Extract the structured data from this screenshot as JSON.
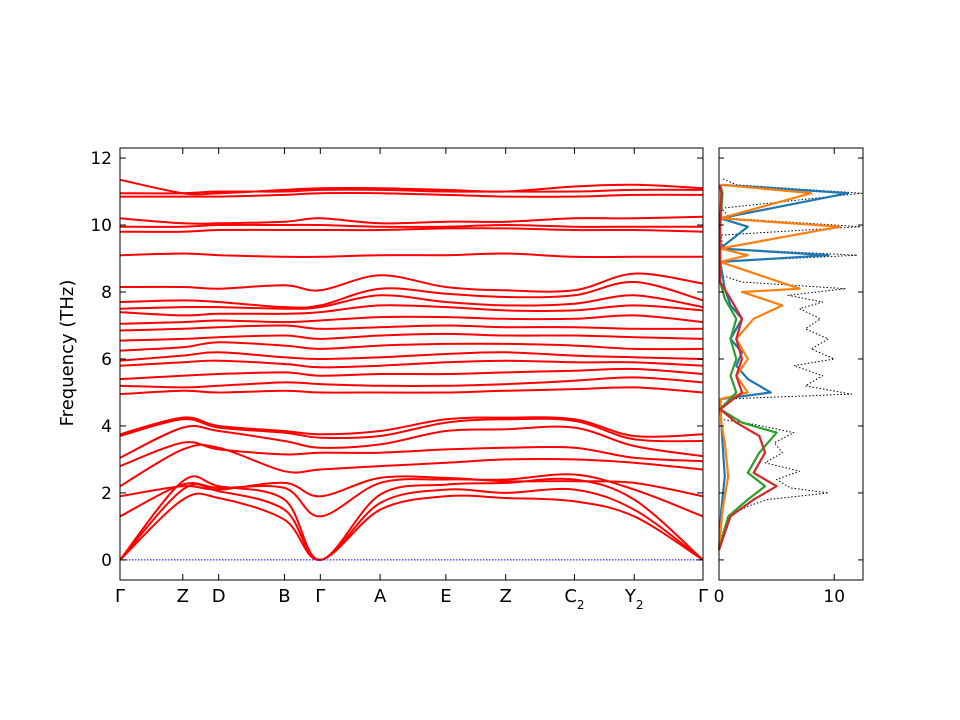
{
  "colors": {
    "bands": "#ff0000",
    "zero_line": "#0000ff",
    "total_dos": "#000000",
    "pdos": [
      "#1f77b4",
      "#ff7f0e",
      "#2ca02c",
      "#d62728"
    ]
  },
  "chart_data": [
    {
      "type": "line",
      "ylabel": "Frequency (THz)",
      "ylim": [
        -0.6,
        12.3
      ],
      "y_ticks": [
        0,
        2,
        4,
        6,
        8,
        10,
        12
      ],
      "grid": false,
      "kpath_ticks": [
        {
          "main": "Γ",
          "sub": ""
        },
        {
          "main": "Z",
          "sub": ""
        },
        {
          "main": "D",
          "sub": ""
        },
        {
          "main": "B",
          "sub": ""
        },
        {
          "main": "Γ",
          "sub": ""
        },
        {
          "main": "A",
          "sub": ""
        },
        {
          "main": "E",
          "sub": ""
        },
        {
          "main": "Z",
          "sub": ""
        },
        {
          "main": "C",
          "sub": "2"
        },
        {
          "main": "Y",
          "sub": "2"
        },
        {
          "main": "Γ",
          "sub": ""
        }
      ],
      "kpath_distance": [
        0,
        1.05,
        1.65,
        2.75,
        3.35,
        4.35,
        5.45,
        6.45,
        7.6,
        8.6,
        9.75
      ],
      "zero_line": 0,
      "series_band_values_THz_at_kpath_points": [
        [
          0,
          1.8,
          1.85,
          1.2,
          0,
          1.5,
          1.9,
          1.85,
          1.75,
          1.3,
          0
        ],
        [
          0,
          2.1,
          2.05,
          1.5,
          0,
          1.7,
          2.1,
          2.0,
          2.1,
          1.5,
          0
        ],
        [
          0,
          2.35,
          2.2,
          1.8,
          0,
          1.95,
          2.25,
          2.3,
          2.4,
          1.8,
          0
        ],
        [
          1.3,
          2.25,
          2.15,
          2.15,
          1.3,
          2.3,
          2.4,
          2.4,
          2.55,
          2.1,
          1.3
        ],
        [
          1.9,
          2.2,
          2.1,
          2.3,
          1.9,
          2.45,
          2.45,
          2.35,
          2.35,
          2.3,
          1.9
        ],
        [
          2.2,
          3.3,
          3.35,
          2.65,
          2.7,
          2.8,
          2.9,
          3.0,
          3.0,
          2.9,
          2.7
        ],
        [
          2.8,
          3.5,
          3.3,
          3.15,
          3.2,
          3.2,
          3.3,
          3.35,
          3.35,
          3.05,
          2.95
        ],
        [
          3.05,
          3.95,
          3.85,
          3.55,
          3.35,
          3.45,
          3.85,
          3.9,
          3.95,
          3.4,
          3.1
        ],
        [
          3.7,
          4.2,
          3.95,
          3.8,
          3.65,
          3.7,
          4.1,
          4.2,
          4.15,
          3.6,
          3.55
        ],
        [
          3.75,
          4.25,
          4.0,
          3.85,
          3.75,
          3.85,
          4.2,
          4.25,
          4.2,
          3.7,
          3.75
        ],
        [
          4.95,
          5.05,
          5.0,
          5.05,
          5.0,
          5.0,
          5.0,
          5.05,
          5.1,
          5.15,
          5.0
        ],
        [
          5.2,
          5.15,
          5.2,
          5.3,
          5.25,
          5.2,
          5.2,
          5.25,
          5.35,
          5.45,
          5.3
        ],
        [
          5.4,
          5.5,
          5.55,
          5.6,
          5.5,
          5.55,
          5.55,
          5.6,
          5.65,
          5.7,
          5.55
        ],
        [
          5.8,
          5.9,
          5.95,
          5.85,
          5.75,
          5.8,
          5.9,
          5.95,
          5.9,
          5.9,
          5.8
        ],
        [
          5.95,
          6.1,
          6.2,
          6.05,
          6.0,
          6.05,
          6.15,
          6.2,
          6.1,
          6.05,
          6.0
        ],
        [
          6.25,
          6.35,
          6.5,
          6.4,
          6.3,
          6.4,
          6.45,
          6.45,
          6.4,
          6.3,
          6.3
        ],
        [
          6.55,
          6.6,
          6.65,
          6.7,
          6.6,
          6.7,
          6.75,
          6.7,
          6.7,
          6.65,
          6.6
        ],
        [
          6.85,
          6.9,
          6.95,
          7.0,
          6.9,
          6.95,
          7.0,
          6.95,
          6.95,
          6.9,
          6.9
        ],
        [
          7.05,
          7.1,
          7.15,
          7.1,
          7.15,
          7.25,
          7.25,
          7.2,
          7.2,
          7.3,
          7.1
        ],
        [
          7.4,
          7.3,
          7.35,
          7.35,
          7.4,
          7.6,
          7.55,
          7.45,
          7.45,
          7.6,
          7.45
        ],
        [
          7.5,
          7.55,
          7.55,
          7.5,
          7.55,
          7.9,
          7.7,
          7.6,
          7.65,
          7.9,
          7.55
        ],
        [
          7.7,
          7.75,
          7.7,
          7.55,
          7.6,
          8.1,
          7.95,
          7.85,
          7.9,
          8.3,
          7.75
        ],
        [
          8.15,
          8.15,
          8.1,
          8.2,
          8.05,
          8.5,
          8.15,
          8.05,
          8.05,
          8.55,
          8.25
        ],
        [
          9.1,
          9.15,
          9.1,
          9.05,
          9.05,
          9.1,
          9.1,
          9.15,
          9.05,
          9.05,
          9.05
        ],
        [
          9.8,
          9.8,
          9.85,
          9.85,
          9.85,
          9.85,
          9.9,
          9.9,
          9.85,
          9.85,
          9.8
        ],
        [
          9.95,
          9.95,
          10.0,
          10.0,
          10.0,
          9.95,
          9.95,
          10.0,
          9.95,
          9.95,
          9.95
        ],
        [
          10.2,
          10.05,
          10.05,
          10.1,
          10.2,
          10.05,
          10.1,
          10.1,
          10.2,
          10.2,
          10.25
        ],
        [
          10.85,
          10.85,
          10.85,
          10.9,
          10.95,
          10.95,
          10.9,
          10.85,
          10.85,
          10.9,
          10.9
        ],
        [
          10.95,
          10.95,
          11.0,
          11.0,
          11.05,
          11.05,
          11.0,
          11.0,
          11.0,
          11.05,
          11.05
        ],
        [
          11.35,
          10.95,
          10.95,
          11.05,
          11.1,
          11.1,
          11.05,
          11.0,
          11.15,
          11.2,
          11.1
        ]
      ]
    },
    {
      "type": "line",
      "xlim": [
        0,
        12.5
      ],
      "x_ticks": [
        0,
        10
      ],
      "ylim": [
        -0.6,
        12.3
      ],
      "dos_series": [
        {
          "style": "total",
          "points": [
            [
              0,
              0.3
            ],
            [
              0.3,
              0.8
            ],
            [
              0.8,
              1.3
            ],
            [
              2.5,
              1.6
            ],
            [
              4.2,
              1.8
            ],
            [
              9.5,
              2.0
            ],
            [
              6.2,
              2.15
            ],
            [
              5.0,
              2.4
            ],
            [
              7.0,
              2.65
            ],
            [
              4.0,
              2.9
            ],
            [
              5.5,
              3.2
            ],
            [
              4.8,
              3.5
            ],
            [
              6.5,
              3.8
            ],
            [
              3.0,
              4.05
            ],
            [
              0.2,
              4.2
            ],
            [
              0.2,
              4.8
            ],
            [
              11.5,
              4.95
            ],
            [
              7.5,
              5.2
            ],
            [
              9.0,
              5.5
            ],
            [
              6.5,
              5.8
            ],
            [
              10.0,
              6.0
            ],
            [
              8.0,
              6.3
            ],
            [
              9.5,
              6.6
            ],
            [
              7.5,
              6.9
            ],
            [
              8.8,
              7.2
            ],
            [
              7.0,
              7.5
            ],
            [
              9.0,
              7.7
            ],
            [
              6.0,
              7.9
            ],
            [
              11.0,
              8.1
            ],
            [
              2.0,
              8.3
            ],
            [
              0.2,
              8.5
            ],
            [
              0.2,
              8.9
            ],
            [
              12.0,
              9.1
            ],
            [
              0.3,
              9.3
            ],
            [
              0.2,
              9.7
            ],
            [
              12.3,
              9.95
            ],
            [
              1.0,
              10.2
            ],
            [
              0.2,
              10.5
            ],
            [
              12.4,
              10.95
            ],
            [
              1.5,
              11.2
            ],
            [
              0.2,
              11.4
            ]
          ]
        },
        {
          "style": "pdos1",
          "points": [
            [
              0,
              0.3
            ],
            [
              0.2,
              1.5
            ],
            [
              0.5,
              2.5
            ],
            [
              0.3,
              3.5
            ],
            [
              0.2,
              4.1
            ],
            [
              0.1,
              4.8
            ],
            [
              4.5,
              5.0
            ],
            [
              2.5,
              5.4
            ],
            [
              1.5,
              5.8
            ],
            [
              2.0,
              6.2
            ],
            [
              1.0,
              6.6
            ],
            [
              2.0,
              7.2
            ],
            [
              1.0,
              7.6
            ],
            [
              0.5,
              8.1
            ],
            [
              0.1,
              8.9
            ],
            [
              9.5,
              9.1
            ],
            [
              0.1,
              9.3
            ],
            [
              2.5,
              9.95
            ],
            [
              0.1,
              10.2
            ],
            [
              11.2,
              10.95
            ],
            [
              0.2,
              11.2
            ]
          ]
        },
        {
          "style": "pdos2",
          "points": [
            [
              0,
              0.3
            ],
            [
              0.3,
              1.5
            ],
            [
              0.8,
              2.5
            ],
            [
              0.5,
              3.5
            ],
            [
              0.2,
              4.1
            ],
            [
              0.1,
              4.8
            ],
            [
              2.5,
              5.0
            ],
            [
              1.5,
              5.5
            ],
            [
              2.5,
              6.0
            ],
            [
              1.5,
              6.6
            ],
            [
              3.0,
              7.2
            ],
            [
              5.5,
              7.6
            ],
            [
              2.0,
              8.0
            ],
            [
              7.0,
              8.1
            ],
            [
              0.1,
              8.9
            ],
            [
              2.5,
              9.1
            ],
            [
              0.1,
              9.3
            ],
            [
              10.5,
              9.95
            ],
            [
              0.1,
              10.2
            ],
            [
              8.0,
              10.95
            ],
            [
              0.2,
              11.2
            ]
          ]
        },
        {
          "style": "pdos3",
          "points": [
            [
              0,
              0.3
            ],
            [
              0.8,
              1.3
            ],
            [
              2.5,
              1.8
            ],
            [
              4.0,
              2.2
            ],
            [
              2.5,
              2.6
            ],
            [
              3.5,
              3.2
            ],
            [
              5.0,
              3.8
            ],
            [
              2.0,
              4.1
            ],
            [
              0.1,
              4.5
            ],
            [
              1.5,
              5.0
            ],
            [
              1.0,
              5.5
            ],
            [
              1.5,
              6.0
            ],
            [
              1.0,
              6.6
            ],
            [
              1.5,
              7.2
            ],
            [
              0.5,
              7.8
            ],
            [
              0.1,
              8.3
            ],
            [
              0.1,
              9.1
            ],
            [
              0.1,
              9.95
            ],
            [
              0.3,
              10.95
            ],
            [
              0.1,
              11.2
            ]
          ]
        },
        {
          "style": "pdos4",
          "points": [
            [
              0,
              0.3
            ],
            [
              1.0,
              1.3
            ],
            [
              3.0,
              1.8
            ],
            [
              5.0,
              2.2
            ],
            [
              3.0,
              2.6
            ],
            [
              4.0,
              3.2
            ],
            [
              3.5,
              3.7
            ],
            [
              1.5,
              4.1
            ],
            [
              0.1,
              4.5
            ],
            [
              2.0,
              5.0
            ],
            [
              1.5,
              5.5
            ],
            [
              2.0,
              6.0
            ],
            [
              1.5,
              6.6
            ],
            [
              2.0,
              7.2
            ],
            [
              1.0,
              7.8
            ],
            [
              0.1,
              8.3
            ],
            [
              0.1,
              9.1
            ],
            [
              0.1,
              9.95
            ],
            [
              0.2,
              10.95
            ],
            [
              0.1,
              11.2
            ]
          ]
        }
      ]
    }
  ]
}
